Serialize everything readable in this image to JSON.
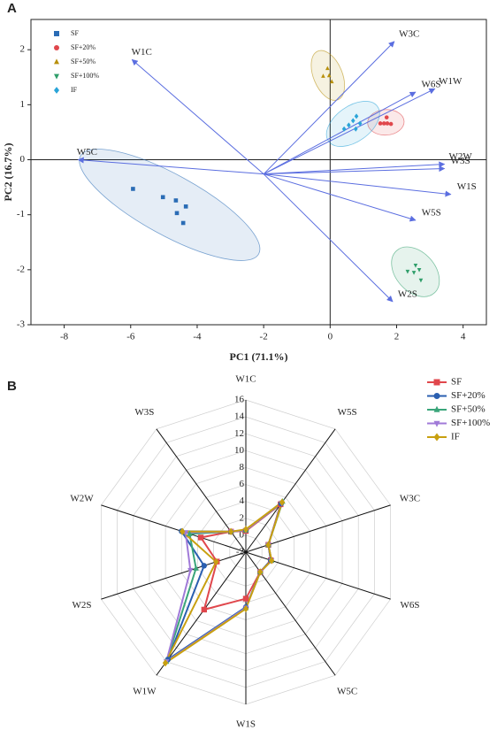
{
  "chart_data": [
    {
      "type": "biplot",
      "panel": "A",
      "x_label": "PC1 (71.1%)",
      "y_label": "PC2 (16.7%)",
      "xlim": [
        -9,
        4.7
      ],
      "ylim": [
        -3,
        2.55
      ],
      "xticks": [
        -8,
        -6,
        -4,
        -2,
        0,
        2,
        4
      ],
      "yticks": [
        -3,
        -2,
        -1,
        0,
        1,
        2
      ],
      "zero_lines": true,
      "legend": "upper-left",
      "arrow_color": "#5b6ee0",
      "series": [
        {
          "name": "SF",
          "color": "#2a6cb5",
          "marker": "square",
          "x": [
            -5.93,
            -5.03,
            -4.64,
            -4.34,
            -4.61,
            -4.42
          ],
          "y": [
            -0.53,
            -0.68,
            -0.74,
            -0.85,
            -0.97,
            -1.15
          ]
        },
        {
          "name": "SF+20%",
          "color": "#e0474c",
          "marker": "circle",
          "x": [
            1.7,
            1.51,
            1.62,
            1.72,
            1.83
          ],
          "y": [
            0.77,
            0.66,
            0.66,
            0.66,
            0.65
          ]
        },
        {
          "name": "SF+50%",
          "color": "#b8900c",
          "marker": "triangle-up",
          "x": [
            -0.08,
            -0.21,
            -0.03,
            0.05
          ],
          "y": [
            1.66,
            1.52,
            1.53,
            1.42
          ]
        },
        {
          "name": "SF+100%",
          "color": "#2f9e6a",
          "marker": "triangle-down",
          "x": [
            2.57,
            2.33,
            2.52,
            2.68,
            2.73
          ],
          "y": [
            -1.92,
            -2.03,
            -2.05,
            -2.0,
            -2.19
          ]
        },
        {
          "name": "IF",
          "color": "#2aa4d8",
          "marker": "diamond",
          "x": [
            0.79,
            0.69,
            0.56,
            0.9,
            0.42,
            0.77
          ],
          "y": [
            0.79,
            0.71,
            0.63,
            0.66,
            0.56,
            0.56
          ]
        }
      ],
      "loading_origin": {
        "x": -2,
        "y": -0.26
      },
      "loadings": [
        {
          "name": "W1C",
          "x": -5.96,
          "y": 1.82
        },
        {
          "name": "W3C",
          "x": 1.93,
          "y": 2.15
        },
        {
          "name": "W6S",
          "x": 2.57,
          "y": 1.23
        },
        {
          "name": "W1W",
          "x": 3.15,
          "y": 1.29
        },
        {
          "name": "W2W",
          "x": 3.44,
          "y": -0.08
        },
        {
          "name": "W3S",
          "x": 3.44,
          "y": -0.16
        },
        {
          "name": "W1S",
          "x": 3.63,
          "y": -0.63
        },
        {
          "name": "W5S",
          "x": 2.57,
          "y": -1.1
        },
        {
          "name": "W2S",
          "x": 1.88,
          "y": -2.58
        },
        {
          "name": "W5C",
          "x": -7.58,
          "y": 0.0
        }
      ]
    },
    {
      "type": "radar",
      "panel": "B",
      "legend": "upper-right",
      "categories": [
        "W1C",
        "W5S",
        "W3C",
        "W6S",
        "W5C",
        "W1S",
        "W1W",
        "W2S",
        "W2W",
        "W3S"
      ],
      "rlim": [
        -2,
        16
      ],
      "rticks": [
        -2,
        0,
        2,
        4,
        6,
        8,
        10,
        12,
        14,
        16
      ],
      "series": [
        {
          "name": "SF",
          "color": "#e0474c",
          "marker": "square",
          "values": [
            0.5,
            5.0,
            0.8,
            1.1,
            0.9,
            3.5,
            6.4,
            1.6,
            3.6,
            1.0
          ]
        },
        {
          "name": "SF+20%",
          "color": "#2a5fb0",
          "marker": "circle",
          "values": [
            0.6,
            5.1,
            0.8,
            1.1,
            0.9,
            4.5,
            13.7,
            3.2,
            6.0,
            1.0
          ]
        },
        {
          "name": "SF+50%",
          "color": "#3aa57a",
          "marker": "triangle-up",
          "values": [
            0.6,
            5.4,
            0.8,
            1.2,
            0.9,
            4.6,
            14.0,
            4.2,
            5.0,
            1.0
          ]
        },
        {
          "name": "SF+100%",
          "color": "#a07ad8",
          "marker": "triangle-down",
          "values": [
            0.6,
            5.2,
            0.8,
            1.2,
            0.9,
            4.6,
            14.0,
            4.9,
            5.5,
            1.0
          ]
        },
        {
          "name": "IF",
          "color": "#c8a010",
          "marker": "diamond",
          "values": [
            0.7,
            5.3,
            0.8,
            1.2,
            0.9,
            4.7,
            14.2,
            1.7,
            5.9,
            1.0
          ]
        }
      ]
    }
  ]
}
